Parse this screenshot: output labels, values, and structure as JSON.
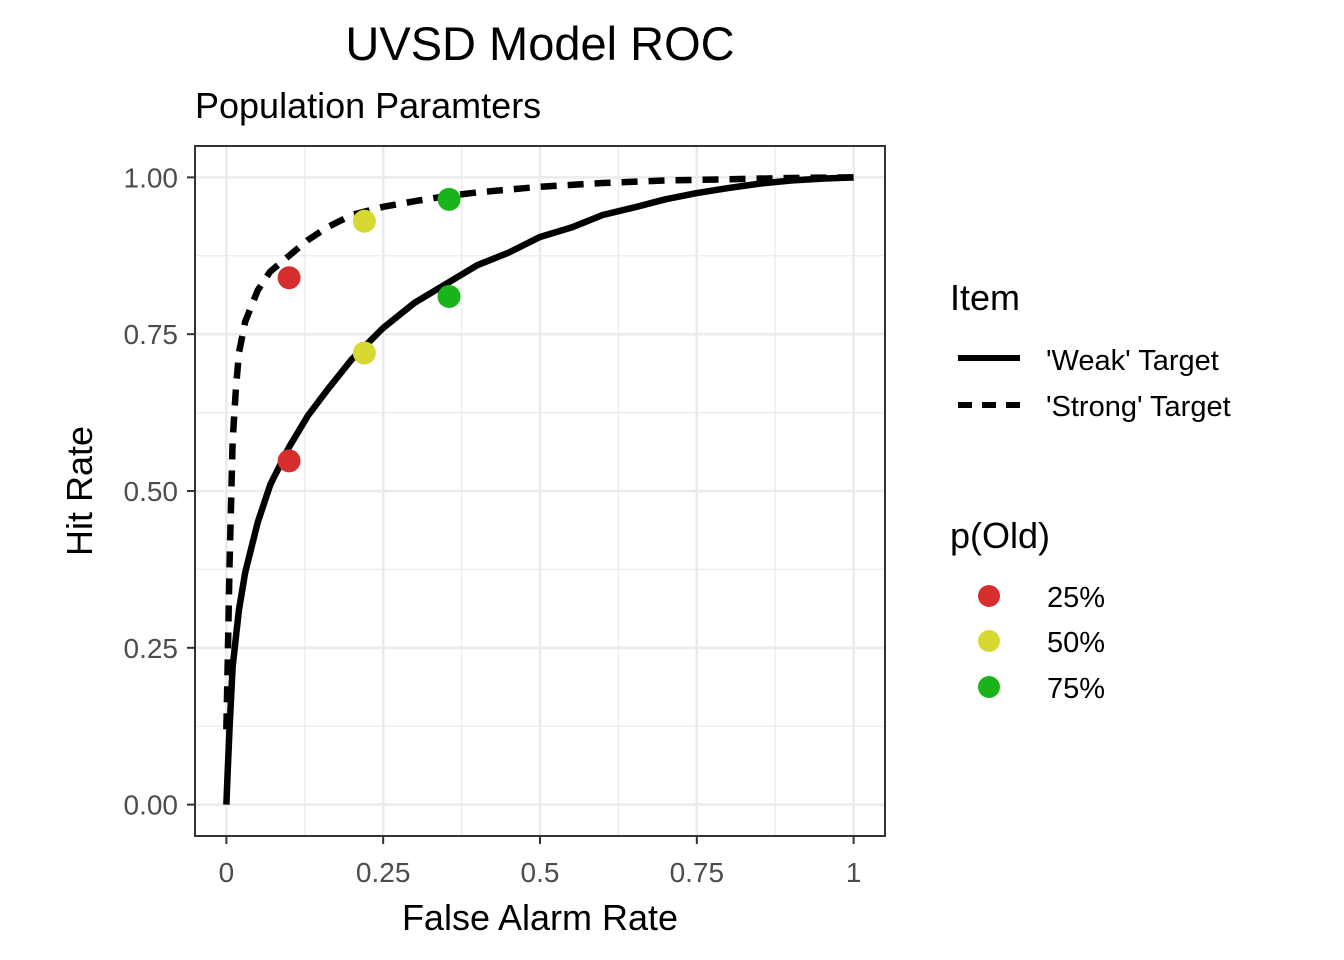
{
  "chart_data": {
    "type": "line",
    "title": "UVSD Model ROC",
    "subtitle": "Population Paramters",
    "xlabel": "False Alarm Rate",
    "ylabel": "Hit Rate",
    "xlim": [
      -0.05,
      1.05
    ],
    "ylim": [
      -0.05,
      1.05
    ],
    "x_ticks": [
      0,
      0.25,
      0.5,
      0.75,
      1
    ],
    "x_tick_labels": [
      "0",
      "0.25",
      "0.5",
      "0.75",
      "1"
    ],
    "y_ticks": [
      0,
      0.25,
      0.5,
      0.75,
      1
    ],
    "y_tick_labels": [
      "0.00",
      "0.25",
      "0.50",
      "0.75",
      "1.00"
    ],
    "grid": true,
    "line_legend": {
      "title": "Item",
      "position": "right",
      "entries": [
        {
          "label": "'Weak' Target",
          "dash": "solid"
        },
        {
          "label": "'Strong' Target",
          "dash": "dashed"
        }
      ]
    },
    "point_legend": {
      "title": "p(Old)",
      "position": "right",
      "entries": [
        {
          "label": "25%",
          "color": "#d62e2e"
        },
        {
          "label": "50%",
          "color": "#d8d832"
        },
        {
          "label": "75%",
          "color": "#1ab31a"
        }
      ]
    },
    "series": [
      {
        "name": "'Weak' Target",
        "dash": "solid",
        "color": "#000000",
        "points": [
          [
            0,
            0
          ],
          [
            0.002,
            0.05
          ],
          [
            0.005,
            0.12
          ],
          [
            0.01,
            0.22
          ],
          [
            0.02,
            0.31
          ],
          [
            0.03,
            0.37
          ],
          [
            0.05,
            0.45
          ],
          [
            0.07,
            0.51
          ],
          [
            0.1,
            0.57
          ],
          [
            0.13,
            0.62
          ],
          [
            0.16,
            0.66
          ],
          [
            0.2,
            0.71
          ],
          [
            0.25,
            0.76
          ],
          [
            0.3,
            0.8
          ],
          [
            0.35,
            0.83
          ],
          [
            0.4,
            0.86
          ],
          [
            0.45,
            0.88
          ],
          [
            0.5,
            0.905
          ],
          [
            0.55,
            0.92
          ],
          [
            0.6,
            0.94
          ],
          [
            0.65,
            0.952
          ],
          [
            0.7,
            0.965
          ],
          [
            0.75,
            0.975
          ],
          [
            0.8,
            0.983
          ],
          [
            0.85,
            0.99
          ],
          [
            0.9,
            0.995
          ],
          [
            0.95,
            0.998
          ],
          [
            1,
            1
          ]
        ]
      },
      {
        "name": "'Strong' Target",
        "dash": "dashed",
        "color": "#000000",
        "points": [
          [
            0,
            0.12
          ],
          [
            0.002,
            0.22
          ],
          [
            0.005,
            0.38
          ],
          [
            0.01,
            0.58
          ],
          [
            0.015,
            0.66
          ],
          [
            0.02,
            0.72
          ],
          [
            0.03,
            0.77
          ],
          [
            0.05,
            0.82
          ],
          [
            0.07,
            0.85
          ],
          [
            0.1,
            0.875
          ],
          [
            0.13,
            0.9
          ],
          [
            0.16,
            0.92
          ],
          [
            0.2,
            0.94
          ],
          [
            0.25,
            0.953
          ],
          [
            0.3,
            0.962
          ],
          [
            0.35,
            0.97
          ],
          [
            0.4,
            0.976
          ],
          [
            0.5,
            0.985
          ],
          [
            0.6,
            0.991
          ],
          [
            0.7,
            0.995
          ],
          [
            0.8,
            0.997
          ],
          [
            0.9,
            0.999
          ],
          [
            1,
            1
          ]
        ]
      }
    ],
    "points": [
      {
        "x": 0.1,
        "y": 0.84,
        "group": "25%",
        "color": "#d62e2e"
      },
      {
        "x": 0.22,
        "y": 0.93,
        "group": "50%",
        "color": "#d8d832"
      },
      {
        "x": 0.355,
        "y": 0.965,
        "group": "75%",
        "color": "#1ab31a"
      },
      {
        "x": 0.1,
        "y": 0.548,
        "group": "25%",
        "color": "#d62e2e"
      },
      {
        "x": 0.22,
        "y": 0.72,
        "group": "50%",
        "color": "#d8d832"
      },
      {
        "x": 0.355,
        "y": 0.81,
        "group": "75%",
        "color": "#1ab31a"
      }
    ]
  }
}
